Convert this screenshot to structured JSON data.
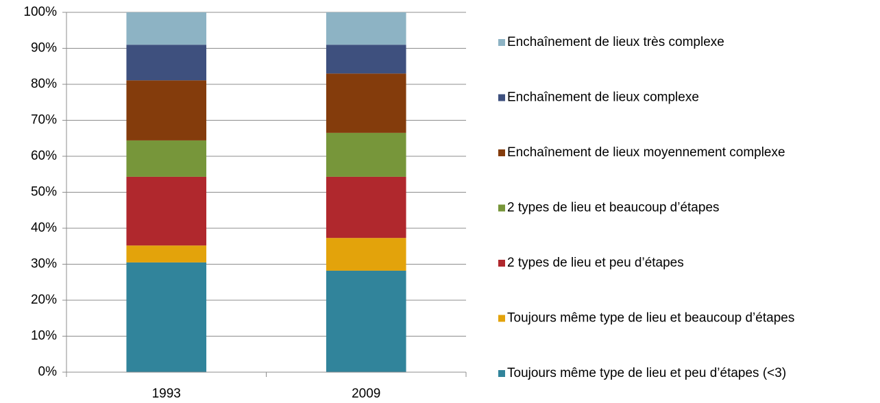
{
  "chart_data": {
    "type": "stacked_bar",
    "categories": [
      "1993",
      "2009"
    ],
    "series": [
      {
        "name": "Toujours même type de lieu et peu d’étapes (<3)",
        "color": "#31849b",
        "values": [
          30.5,
          28.2
        ]
      },
      {
        "name": "Toujours même type de lieu et beaucoup d’étapes",
        "color": "#e3a30b",
        "values": [
          4.7,
          9.1
        ]
      },
      {
        "name": "2 types de lieu et peu d’étapes",
        "color": "#b0282d",
        "values": [
          19.1,
          17.0
        ]
      },
      {
        "name": "2 types de lieu et beaucoup d’étapes",
        "color": "#77963a",
        "values": [
          10.1,
          12.2
        ]
      },
      {
        "name": "Enchaînement de lieux moyennement complexe",
        "color": "#843c0c",
        "values": [
          16.7,
          16.5
        ]
      },
      {
        "name": "Enchaînement de lieux complexe",
        "color": "#3e507e",
        "values": [
          9.9,
          8.0
        ]
      },
      {
        "name": "Enchaînement de lieux très complexe",
        "color": "#8db3c4",
        "values": [
          9.0,
          9.0
        ]
      }
    ],
    "ylim": [
      0,
      100
    ],
    "yticks": [
      {
        "value": 0,
        "label": "0%"
      },
      {
        "value": 10,
        "label": "10%"
      },
      {
        "value": 20,
        "label": "20%"
      },
      {
        "value": 30,
        "label": "30%"
      },
      {
        "value": 40,
        "label": "40%"
      },
      {
        "value": 50,
        "label": "50%"
      },
      {
        "value": 60,
        "label": "60%"
      },
      {
        "value": 70,
        "label": "70%"
      },
      {
        "value": 80,
        "label": "80%"
      },
      {
        "value": 90,
        "label": "90%"
      },
      {
        "value": 100,
        "label": "100%"
      }
    ],
    "grid": true,
    "legend": "right"
  }
}
